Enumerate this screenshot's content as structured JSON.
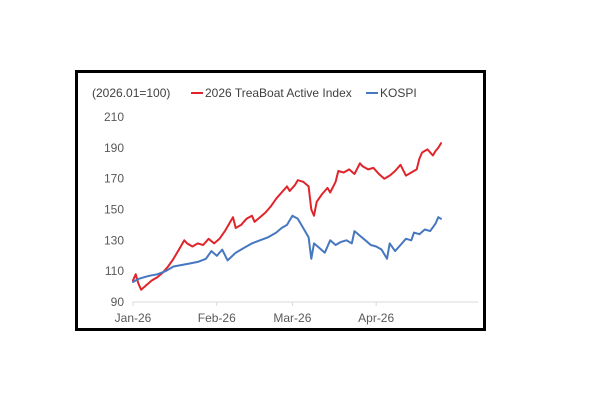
{
  "chart_data": {
    "type": "line",
    "title": "",
    "units_note": "(2026.01=100)",
    "xlabel": "",
    "ylabel": "",
    "x_tick_labels": [
      "Jan-26",
      "Feb-26",
      "Mar-26",
      "Apr-26"
    ],
    "x_range": [
      "2026-01-01",
      "2026-04-25"
    ],
    "ylim": [
      90,
      210
    ],
    "y_ticks": [
      90,
      110,
      130,
      150,
      170,
      190,
      210
    ],
    "grid": false,
    "legend_position": "top",
    "series": [
      {
        "name": "2026 TreaBoat Active Index",
        "color": "#e0242a",
        "points": [
          [
            "2026-01-01",
            104
          ],
          [
            "2026-01-02",
            108
          ],
          [
            "2026-01-03",
            102
          ],
          [
            "2026-01-04",
            98
          ],
          [
            "2026-01-06",
            101
          ],
          [
            "2026-01-08",
            104
          ],
          [
            "2026-01-10",
            106
          ],
          [
            "2026-01-12",
            109
          ],
          [
            "2026-01-14",
            113
          ],
          [
            "2026-01-16",
            118
          ],
          [
            "2026-01-18",
            124
          ],
          [
            "2026-01-20",
            130
          ],
          [
            "2026-01-21",
            128
          ],
          [
            "2026-01-23",
            126
          ],
          [
            "2026-01-25",
            128
          ],
          [
            "2026-01-27",
            127
          ],
          [
            "2026-01-29",
            131
          ],
          [
            "2026-01-31",
            128
          ],
          [
            "2026-02-02",
            131
          ],
          [
            "2026-02-04",
            136
          ],
          [
            "2026-02-06",
            142
          ],
          [
            "2026-02-07",
            145
          ],
          [
            "2026-02-08",
            138
          ],
          [
            "2026-02-10",
            140
          ],
          [
            "2026-02-12",
            144
          ],
          [
            "2026-02-14",
            146
          ],
          [
            "2026-02-15",
            142
          ],
          [
            "2026-02-17",
            145
          ],
          [
            "2026-02-19",
            148
          ],
          [
            "2026-02-21",
            152
          ],
          [
            "2026-02-23",
            157
          ],
          [
            "2026-02-25",
            161
          ],
          [
            "2026-02-27",
            165
          ],
          [
            "2026-02-28",
            162
          ],
          [
            "2026-03-02",
            166
          ],
          [
            "2026-03-03",
            169
          ],
          [
            "2026-03-05",
            168
          ],
          [
            "2026-03-07",
            165
          ],
          [
            "2026-03-08",
            150
          ],
          [
            "2026-03-09",
            146
          ],
          [
            "2026-03-10",
            155
          ],
          [
            "2026-03-12",
            160
          ],
          [
            "2026-03-14",
            164
          ],
          [
            "2026-03-15",
            161
          ],
          [
            "2026-03-17",
            168
          ],
          [
            "2026-03-18",
            175
          ],
          [
            "2026-03-20",
            174
          ],
          [
            "2026-03-22",
            176
          ],
          [
            "2026-03-24",
            173
          ],
          [
            "2026-03-26",
            180
          ],
          [
            "2026-03-27",
            178
          ],
          [
            "2026-03-29",
            176
          ],
          [
            "2026-03-31",
            177
          ],
          [
            "2026-04-02",
            173
          ],
          [
            "2026-04-04",
            170
          ],
          [
            "2026-04-06",
            172
          ],
          [
            "2026-04-08",
            175
          ],
          [
            "2026-04-10",
            179
          ],
          [
            "2026-04-12",
            172
          ],
          [
            "2026-04-14",
            174
          ],
          [
            "2026-04-16",
            176
          ],
          [
            "2026-04-17",
            183
          ],
          [
            "2026-04-18",
            187
          ],
          [
            "2026-04-20",
            189
          ],
          [
            "2026-04-21",
            187
          ],
          [
            "2026-04-22",
            185
          ],
          [
            "2026-04-23",
            188
          ],
          [
            "2026-04-24",
            190
          ],
          [
            "2026-04-25",
            193
          ]
        ]
      },
      {
        "name": "KOSPI",
        "color": "#4677c1",
        "points": [
          [
            "2026-01-01",
            103
          ],
          [
            "2026-01-03",
            105
          ],
          [
            "2026-01-05",
            106
          ],
          [
            "2026-01-07",
            107
          ],
          [
            "2026-01-10",
            108
          ],
          [
            "2026-01-13",
            110
          ],
          [
            "2026-01-16",
            113
          ],
          [
            "2026-01-19",
            114
          ],
          [
            "2026-01-22",
            115
          ],
          [
            "2026-01-25",
            116
          ],
          [
            "2026-01-28",
            118
          ],
          [
            "2026-01-30",
            123
          ],
          [
            "2026-02-01",
            120
          ],
          [
            "2026-02-03",
            124
          ],
          [
            "2026-02-05",
            117
          ],
          [
            "2026-02-08",
            122
          ],
          [
            "2026-02-11",
            125
          ],
          [
            "2026-02-14",
            128
          ],
          [
            "2026-02-17",
            130
          ],
          [
            "2026-02-20",
            132
          ],
          [
            "2026-02-23",
            135
          ],
          [
            "2026-02-25",
            138
          ],
          [
            "2026-02-27",
            140
          ],
          [
            "2026-03-01",
            146
          ],
          [
            "2026-03-03",
            144
          ],
          [
            "2026-03-05",
            138
          ],
          [
            "2026-03-07",
            132
          ],
          [
            "2026-03-08",
            118
          ],
          [
            "2026-03-09",
            128
          ],
          [
            "2026-03-11",
            125
          ],
          [
            "2026-03-13",
            122
          ],
          [
            "2026-03-15",
            130
          ],
          [
            "2026-03-17",
            127
          ],
          [
            "2026-03-19",
            129
          ],
          [
            "2026-03-21",
            130
          ],
          [
            "2026-03-23",
            128
          ],
          [
            "2026-03-24",
            136
          ],
          [
            "2026-03-26",
            133
          ],
          [
            "2026-03-28",
            130
          ],
          [
            "2026-03-30",
            127
          ],
          [
            "2026-04-01",
            126
          ],
          [
            "2026-04-03",
            124
          ],
          [
            "2026-04-05",
            118
          ],
          [
            "2026-04-06",
            128
          ],
          [
            "2026-04-08",
            123
          ],
          [
            "2026-04-10",
            127
          ],
          [
            "2026-04-12",
            131
          ],
          [
            "2026-04-14",
            130
          ],
          [
            "2026-04-15",
            135
          ],
          [
            "2026-04-17",
            134
          ],
          [
            "2026-04-19",
            137
          ],
          [
            "2026-04-21",
            136
          ],
          [
            "2026-04-23",
            141
          ],
          [
            "2026-04-24",
            145
          ],
          [
            "2026-04-25",
            144
          ]
        ]
      }
    ]
  }
}
